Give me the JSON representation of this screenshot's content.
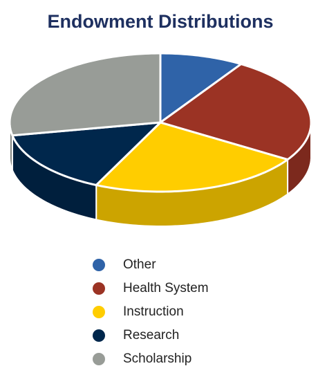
{
  "chart_data": {
    "type": "pie3d",
    "title": "Endowment Distributions",
    "categories": [
      "Other",
      "Health System",
      "Instruction",
      "Research",
      "Scholarship"
    ],
    "values": [
      9,
      25,
      23,
      15,
      28
    ],
    "colors": [
      "#2f63a8",
      "#9b3324",
      "#ffcd00",
      "#00274c",
      "#989c97"
    ],
    "legend": "bottom"
  }
}
